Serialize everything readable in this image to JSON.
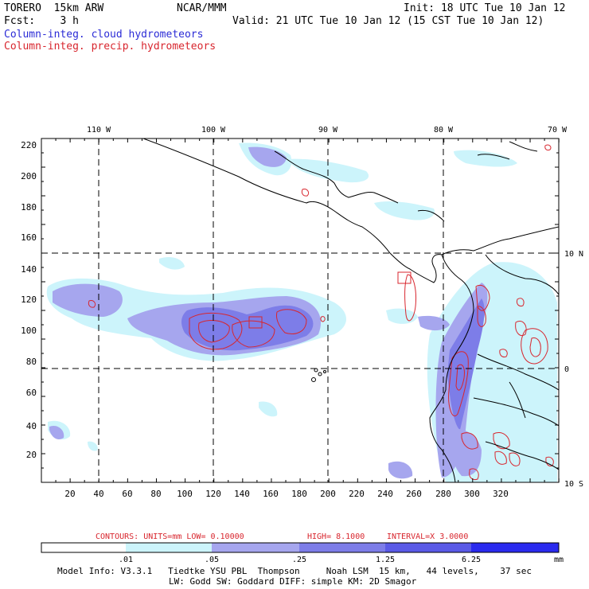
{
  "header": {
    "model": "TORERO  15km ARW",
    "org": "NCAR/MMM",
    "init": "Init: 18 UTC Tue 10 Jan 12",
    "fcst": "Fcst:    3 h",
    "valid": "Valid: 21 UTC Tue 10 Jan 12 (15 CST Tue 10 Jan 12)",
    "field1": "Column-integ. cloud hydrometeors",
    "field2": "Column-integ. precip. hydrometeors"
  },
  "axes": {
    "x_grid_labels": [
      "20",
      "40",
      "60",
      "80",
      "100",
      "120",
      "140",
      "160",
      "180",
      "200",
      "220",
      "240",
      "260",
      "280",
      "300",
      "320"
    ],
    "y_grid_labels": [
      "20",
      "40",
      "60",
      "80",
      "100",
      "120",
      "140",
      "160",
      "180",
      "200",
      "220"
    ],
    "lon_labels": [
      "110 W",
      "100 W",
      "90 W",
      "80 W",
      "70 W"
    ],
    "lat_labels": [
      "10 N",
      "0",
      "10 S"
    ]
  },
  "contour_info": {
    "contours": "CONTOURS:  UNITS=mm  LOW= 0.10000",
    "high": "HIGH=  8.1000",
    "interval": "INTERVAL=X  3.0000"
  },
  "colorbar": {
    "labels": [
      ".01",
      ".05",
      ".25",
      "1.25",
      "6.25"
    ],
    "units": "mm",
    "colors": [
      "#ffffff",
      "#ccf4fb",
      "#a6a6ee",
      "#7d7de8",
      "#5a5ae6",
      "#2a2aee"
    ]
  },
  "footer": {
    "line1": "Model Info: V3.3.1   Tiedtke YSU PBL  Thompson     Noah LSM  15 km,   44 levels,    37 sec",
    "line2": "LW: Godd SW: Goddard DIFF: simple KM: 2D Smagor"
  },
  "colors": {
    "cloud_light": "#ccf4fb",
    "cloud_mid": "#a6a6ee",
    "cloud_dark": "#7d7de8",
    "precip": "#d8262e"
  }
}
